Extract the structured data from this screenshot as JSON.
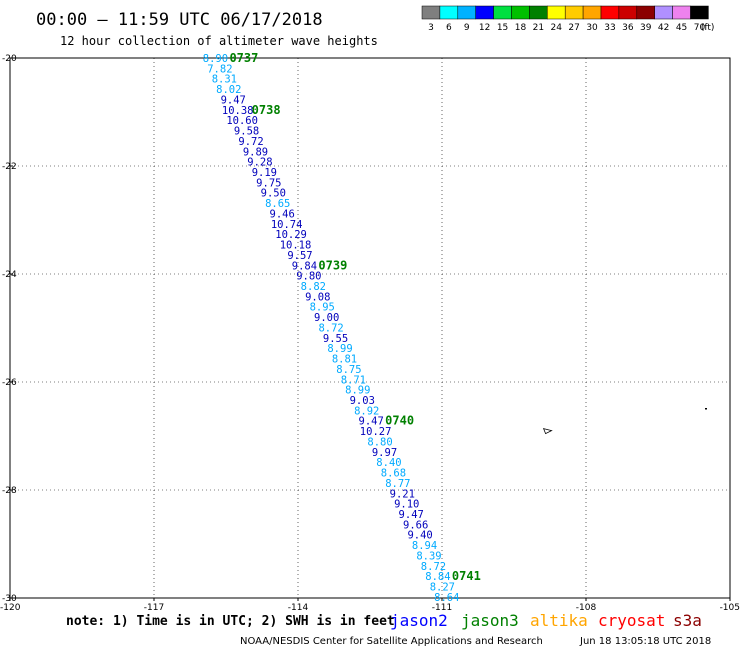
{
  "header": {
    "title": "00:00 – 11:59 UTC 06/17/2018",
    "subtitle": "12 hour collection of altimeter wave heights"
  },
  "colorbar": {
    "labels": [
      "3",
      "6",
      "9",
      "12",
      "15",
      "18",
      "21",
      "24",
      "27",
      "30",
      "33",
      "36",
      "39",
      "42",
      "45",
      "70"
    ],
    "unit": "(ft)",
    "colors": [
      "#7f7f7f",
      "#00ffff",
      "#00b2ff",
      "#0000ff",
      "#00e040",
      "#00c000",
      "#008000",
      "#ffff00",
      "#ffcc00",
      "#ffa500",
      "#ff0000",
      "#cc0000",
      "#8b0000",
      "#b090ff",
      "#ee82ee",
      "#000000"
    ]
  },
  "footer": {
    "note": "note: 1) Time is in UTC; 2) SWH is in feet",
    "credit": "NOAA/NESDIS Center for Satellite Applications and Research",
    "timestamp": "Jun 18 13:05:18 UTC 2018",
    "satellites": [
      {
        "name": "jason2",
        "color": "#0000ff"
      },
      {
        "name": "jason3",
        "color": "#008000"
      },
      {
        "name": "altika",
        "color": "#ffa500"
      },
      {
        "name": "cryosat",
        "color": "#ff0000"
      },
      {
        "name": "s3a",
        "color": "#8b0000"
      }
    ]
  },
  "chart_data": {
    "type": "scatter",
    "title": "00:00 – 11:59 UTC 06/17/2018",
    "subtitle": "12 hour collection of altimeter wave heights",
    "xlabel": "",
    "ylabel": "",
    "xlim": [
      -120,
      -105
    ],
    "ylim": [
      -30,
      -20
    ],
    "x_ticks": [
      "-120",
      "-117",
      "-114",
      "-111",
      "-108",
      "-105"
    ],
    "y_ticks": [
      "-20",
      "-22",
      "-24",
      "-26",
      "-28",
      "-30"
    ],
    "x_tick_values": [
      -120,
      -117,
      -114,
      -111,
      -108,
      -105
    ],
    "y_tick_values": [
      -20,
      -22,
      -24,
      -26,
      -28,
      -30
    ],
    "grid": "dotted",
    "track_start": [
      -115.72,
      -20.0
    ],
    "track_end": [
      -110.9,
      -29.98
    ],
    "values": [
      "8.90",
      "7.82",
      "8.31",
      "8.02",
      "9.47",
      "10.38",
      "10.60",
      "9.58",
      "9.72",
      "9.89",
      "9.28",
      "9.19",
      "9.75",
      "9.50",
      "8.65",
      "9.46",
      "10.74",
      "10.29",
      "10.18",
      "9.57",
      "9.84",
      "9.80",
      "8.82",
      "9.08",
      "8.95",
      "9.00",
      "8.72",
      "9.55",
      "8.99",
      "8.81",
      "8.75",
      "8.71",
      "8.99",
      "9.03",
      "8.92",
      "9.47",
      "10.27",
      "8.80",
      "9.97",
      "8.40",
      "8.68",
      "8.77",
      "9.21",
      "9.10",
      "9.47",
      "9.66",
      "9.40",
      "8.94",
      "8.39",
      "8.72",
      "8.84",
      "8.27",
      "8.64"
    ],
    "time_labels": [
      {
        "text": "0737",
        "index": 0
      },
      {
        "text": "0738",
        "index": 5
      },
      {
        "text": "0739",
        "index": 20
      },
      {
        "text": "0740",
        "index": 35
      },
      {
        "text": "0741",
        "index": 50
      }
    ],
    "islands": [
      [
        -108.8,
        -26.9
      ],
      [
        -105.5,
        -26.5
      ]
    ]
  }
}
